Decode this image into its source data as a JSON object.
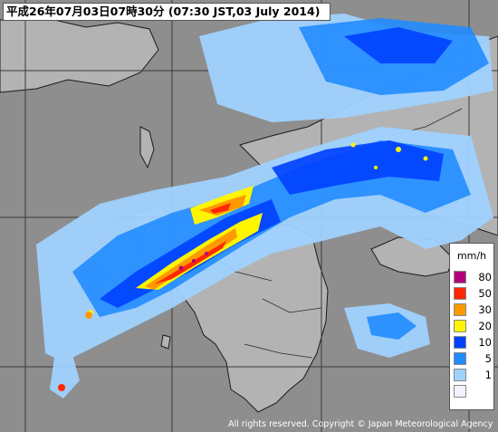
{
  "title": "平成26年07月03日07時30分 (07:30 JST,03 July 2014)",
  "legend": {
    "unit": "mm/h",
    "items": [
      {
        "label": "80",
        "color": "#b4007a"
      },
      {
        "label": "50",
        "color": "#ff2800"
      },
      {
        "label": "30",
        "color": "#ff9900"
      },
      {
        "label": "20",
        "color": "#fff500"
      },
      {
        "label": "10",
        "color": "#0041ff"
      },
      {
        "label": "5",
        "color": "#218cff"
      },
      {
        "label": "1",
        "color": "#a0d2ff"
      },
      {
        "label": "",
        "color": "#f2f2ff"
      }
    ]
  },
  "copyright": "All rights reserved. Copyright © Japan Meteorological Agency",
  "colors": {
    "sea": "#8e8e8e",
    "land": "#b3b3b3",
    "coast": "#1a1a1a"
  }
}
